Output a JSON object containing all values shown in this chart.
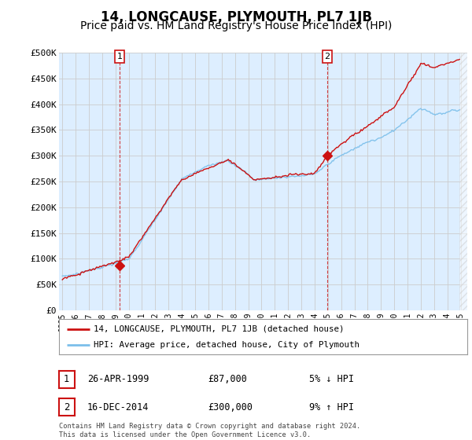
{
  "title": "14, LONGCAUSE, PLYMOUTH, PL7 1JB",
  "subtitle": "Price paid vs. HM Land Registry's House Price Index (HPI)",
  "ylabel_ticks": [
    "£0",
    "£50K",
    "£100K",
    "£150K",
    "£200K",
    "£250K",
    "£300K",
    "£350K",
    "£400K",
    "£450K",
    "£500K"
  ],
  "ytick_values": [
    0,
    50000,
    100000,
    150000,
    200000,
    250000,
    300000,
    350000,
    400000,
    450000,
    500000
  ],
  "ylim": [
    0,
    500000
  ],
  "xlim_start": 1994.75,
  "xlim_end": 2025.5,
  "data_end": 2024.92,
  "background_color": "#ddeeff",
  "plot_bg": "#ddeeff",
  "grid_color": "#cccccc",
  "line_color_hpi": "#7bbfea",
  "line_color_price": "#cc1111",
  "purchase1_x": 1999.32,
  "purchase1_y": 87000,
  "purchase2_x": 2014.96,
  "purchase2_y": 300000,
  "legend_label1": "14, LONGCAUSE, PLYMOUTH, PL7 1JB (detached house)",
  "legend_label2": "HPI: Average price, detached house, City of Plymouth",
  "annotation1_date": "26-APR-1999",
  "annotation1_price": "£87,000",
  "annotation1_hpi": "5% ↓ HPI",
  "annotation2_date": "16-DEC-2014",
  "annotation2_price": "£300,000",
  "annotation2_hpi": "9% ↑ HPI",
  "footer": "Contains HM Land Registry data © Crown copyright and database right 2024.\nThis data is licensed under the Open Government Licence v3.0.",
  "title_fontsize": 12,
  "subtitle_fontsize": 10
}
